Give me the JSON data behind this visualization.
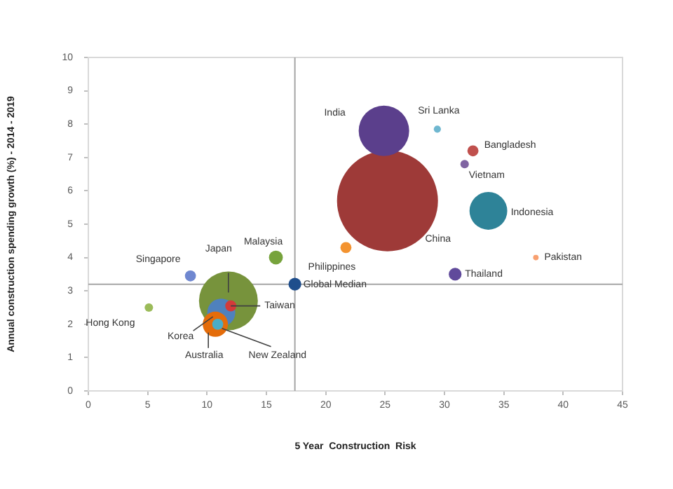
{
  "chart_data": {
    "type": "bubble",
    "xlabel": "5 Year  Construction  Risk",
    "ylabel": "Annual construction spending growth (%) - 2014 - 2019",
    "xlim": [
      0,
      45
    ],
    "xticks": [
      0,
      5,
      10,
      15,
      20,
      25,
      30,
      35,
      40,
      45
    ],
    "ylim": [
      0,
      10
    ],
    "yticks": [
      0,
      1,
      2,
      3,
      4,
      5,
      6,
      7,
      8,
      9,
      10
    ],
    "legend": false,
    "ref_lines": [
      {
        "axis": "y",
        "value": 3.2,
        "color": "#a6a6a6"
      },
      {
        "axis": "x",
        "value": 17.4,
        "color": "#a6a6a6"
      }
    ],
    "series": [
      {
        "name": "China",
        "color": "#9e3a38",
        "x": [
          25.2
        ],
        "values": [
          5.7
        ],
        "sizes": [
          1
        ]
      },
      {
        "name": "Japan",
        "color": "#77933c",
        "x": [
          11.8
        ],
        "values": [
          2.7
        ],
        "sizes": [
          0.34
        ]
      },
      {
        "name": "India",
        "color": "#5b3f8c",
        "x": [
          24.9
        ],
        "values": [
          7.8
        ],
        "sizes": [
          0.25
        ]
      },
      {
        "name": "Indonesia",
        "color": "#2e8398",
        "x": [
          33.7
        ],
        "values": [
          5.4
        ],
        "sizes": [
          0.14
        ]
      },
      {
        "name": "Korea",
        "color": "#4f81bd",
        "x": [
          11.2
        ],
        "values": [
          2.35
        ],
        "sizes": [
          0.077
        ]
      },
      {
        "name": "Australia",
        "color": "#e46c0a",
        "x": [
          10.7
        ],
        "values": [
          2.0
        ],
        "sizes": [
          0.0625
        ]
      },
      {
        "name": "New Zealand",
        "color": "#4bacc6",
        "x": [
          10.9
        ],
        "values": [
          2.0
        ],
        "sizes": [
          0.012
        ]
      },
      {
        "name": "Taiwan",
        "color": "#d43a3a",
        "x": [
          12.0
        ],
        "values": [
          2.55
        ],
        "sizes": [
          0.012
        ]
      },
      {
        "name": "Malaysia",
        "color": "#77a33c",
        "x": [
          15.8
        ],
        "values": [
          4.0
        ],
        "sizes": [
          0.019
        ]
      },
      {
        "name": "Global Median",
        "color": "#1f4e8c",
        "x": [
          17.4
        ],
        "values": [
          3.2
        ],
        "sizes": [
          0.016
        ]
      },
      {
        "name": "Thailand",
        "color": "#604a9b",
        "x": [
          30.9
        ],
        "values": [
          3.5
        ],
        "sizes": [
          0.016
        ]
      },
      {
        "name": "Singapore",
        "color": "#6f87d0",
        "x": [
          8.6
        ],
        "values": [
          3.45
        ],
        "sizes": [
          0.012
        ]
      },
      {
        "name": "Hong Kong",
        "color": "#9bbb59",
        "x": [
          5.1
        ],
        "values": [
          2.5
        ],
        "sizes": [
          0.007
        ]
      },
      {
        "name": "Philippines",
        "color": "#f39330",
        "x": [
          21.7
        ],
        "values": [
          4.3
        ],
        "sizes": [
          0.012
        ]
      },
      {
        "name": "Bangladesh",
        "color": "#c0504d",
        "x": [
          32.4
        ],
        "values": [
          7.2
        ],
        "sizes": [
          0.012
        ]
      },
      {
        "name": "Vietnam",
        "color": "#8064a2",
        "x": [
          31.7
        ],
        "values": [
          6.8
        ],
        "sizes": [
          0.007
        ]
      },
      {
        "name": "Sri Lanka",
        "color": "#6fb7d0",
        "x": [
          29.4
        ],
        "values": [
          7.85
        ],
        "sizes": [
          0.005
        ]
      },
      {
        "name": "Pakistan",
        "color": "#f8a070",
        "x": [
          37.7
        ],
        "values": [
          4.0
        ],
        "sizes": [
          0.003
        ]
      }
    ]
  }
}
